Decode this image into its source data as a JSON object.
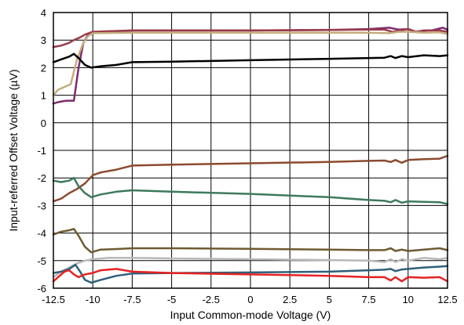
{
  "chart_data": {
    "type": "line",
    "title": "",
    "xlabel": "Input Common-mode Voltage (V)",
    "ylabel": "Input-referred Offset Voltage (µV)",
    "xlim": [
      -12.5,
      12.5
    ],
    "ylim": [
      -6,
      4
    ],
    "x_ticks": [
      -12.5,
      -10,
      -7.5,
      -5,
      -2.5,
      0,
      2.5,
      5,
      7.5,
      10,
      12.5
    ],
    "y_ticks": [
      -6,
      -5,
      -4,
      -3,
      -2,
      -1,
      0,
      1,
      2,
      3,
      4
    ],
    "x_tick_labels": [
      "-12.5",
      "-10",
      "-7.5",
      "-5",
      "-2.5",
      "0",
      "2.5",
      "5",
      "7.5",
      "10",
      "12.5"
    ],
    "y_tick_labels": [
      "-6",
      "-5",
      "-4",
      "-3",
      "-2",
      "-1",
      "0",
      "1",
      "2",
      "3",
      "4"
    ],
    "grid": true,
    "legend": "none",
    "series": [
      {
        "color": "#7b2d6e",
        "points": [
          [
            -12.5,
            0.7
          ],
          [
            -12.2,
            0.75
          ],
          [
            -11.7,
            0.8
          ],
          [
            -11.2,
            0.8
          ],
          [
            -10.9,
            2.0
          ],
          [
            -10.6,
            2.9
          ],
          [
            -10.3,
            3.2
          ],
          [
            -9.8,
            3.27
          ],
          [
            -7.5,
            3.35
          ],
          [
            0,
            3.35
          ],
          [
            5,
            3.37
          ],
          [
            7.5,
            3.4
          ],
          [
            8.8,
            3.45
          ],
          [
            9.4,
            3.38
          ],
          [
            10,
            3.4
          ],
          [
            10.5,
            3.3
          ],
          [
            11,
            3.35
          ],
          [
            11.5,
            3.35
          ],
          [
            12.2,
            3.45
          ],
          [
            12.5,
            3.38
          ]
        ]
      },
      {
        "color": "#9b3b4a",
        "points": [
          [
            -12.5,
            2.75
          ],
          [
            -12,
            2.8
          ],
          [
            -11.5,
            2.9
          ],
          [
            -11.2,
            3.0
          ],
          [
            -10.8,
            3.1
          ],
          [
            -10.5,
            3.2
          ],
          [
            -10,
            3.3
          ],
          [
            -7.5,
            3.35
          ],
          [
            0,
            3.35
          ],
          [
            5,
            3.37
          ],
          [
            7.5,
            3.38
          ],
          [
            8.5,
            3.38
          ],
          [
            9,
            3.3
          ],
          [
            9.5,
            3.35
          ],
          [
            10,
            3.4
          ],
          [
            10.5,
            3.3
          ],
          [
            11.2,
            3.35
          ],
          [
            12,
            3.35
          ],
          [
            12.5,
            3.3
          ]
        ]
      },
      {
        "color": "#c4ad7e",
        "points": [
          [
            -12.5,
            1.0
          ],
          [
            -12.2,
            1.2
          ],
          [
            -11.8,
            1.3
          ],
          [
            -11.4,
            1.4
          ],
          [
            -11,
            2.3
          ],
          [
            -10.6,
            2.9
          ],
          [
            -10.3,
            3.15
          ],
          [
            -10,
            3.25
          ],
          [
            -7.5,
            3.27
          ],
          [
            0,
            3.27
          ],
          [
            5,
            3.27
          ],
          [
            7.5,
            3.27
          ],
          [
            8.8,
            3.25
          ],
          [
            9.4,
            3.3
          ],
          [
            10,
            3.3
          ],
          [
            11,
            3.27
          ],
          [
            12,
            3.28
          ],
          [
            12.5,
            3.22
          ]
        ]
      },
      {
        "color": "#000000",
        "points": [
          [
            -12.5,
            2.2
          ],
          [
            -12,
            2.3
          ],
          [
            -11.5,
            2.4
          ],
          [
            -11.2,
            2.5
          ],
          [
            -10.9,
            2.35
          ],
          [
            -10.5,
            2.1
          ],
          [
            -10.1,
            2.0
          ],
          [
            -9.5,
            2.05
          ],
          [
            -8.5,
            2.1
          ],
          [
            -7.5,
            2.2
          ],
          [
            -5,
            2.22
          ],
          [
            0,
            2.27
          ],
          [
            5,
            2.32
          ],
          [
            7.5,
            2.35
          ],
          [
            8.5,
            2.36
          ],
          [
            8.9,
            2.42
          ],
          [
            9.2,
            2.35
          ],
          [
            9.6,
            2.42
          ],
          [
            10,
            2.38
          ],
          [
            11,
            2.45
          ],
          [
            12,
            2.42
          ],
          [
            12.5,
            2.45
          ]
        ]
      },
      {
        "color": "#8c4a2f",
        "points": [
          [
            -12.5,
            -2.85
          ],
          [
            -12,
            -2.75
          ],
          [
            -11.5,
            -2.55
          ],
          [
            -11,
            -2.4
          ],
          [
            -10.5,
            -2.2
          ],
          [
            -10,
            -1.9
          ],
          [
            -9.5,
            -1.8
          ],
          [
            -8.5,
            -1.7
          ],
          [
            -7.5,
            -1.55
          ],
          [
            -5,
            -1.52
          ],
          [
            0,
            -1.47
          ],
          [
            5,
            -1.42
          ],
          [
            7.5,
            -1.38
          ],
          [
            8.5,
            -1.37
          ],
          [
            8.9,
            -1.42
          ],
          [
            9.2,
            -1.35
          ],
          [
            9.6,
            -1.45
          ],
          [
            10,
            -1.35
          ],
          [
            11,
            -1.32
          ],
          [
            12,
            -1.3
          ],
          [
            12.5,
            -1.2
          ]
        ]
      },
      {
        "color": "#3d7a5a",
        "points": [
          [
            -12.5,
            -2.1
          ],
          [
            -12,
            -2.15
          ],
          [
            -11.5,
            -2.1
          ],
          [
            -11.2,
            -2.0
          ],
          [
            -10.9,
            -2.3
          ],
          [
            -10.5,
            -2.55
          ],
          [
            -10.1,
            -2.7
          ],
          [
            -9.5,
            -2.6
          ],
          [
            -8.5,
            -2.5
          ],
          [
            -7.5,
            -2.45
          ],
          [
            -5,
            -2.5
          ],
          [
            0,
            -2.58
          ],
          [
            5,
            -2.7
          ],
          [
            7.5,
            -2.8
          ],
          [
            8.5,
            -2.83
          ],
          [
            8.9,
            -2.88
          ],
          [
            9.2,
            -2.8
          ],
          [
            9.6,
            -2.9
          ],
          [
            10,
            -2.85
          ],
          [
            11,
            -2.87
          ],
          [
            12,
            -2.88
          ],
          [
            12.5,
            -2.95
          ]
        ]
      },
      {
        "color": "#6e5a30",
        "points": [
          [
            -12.5,
            -4.05
          ],
          [
            -12,
            -3.95
          ],
          [
            -11.5,
            -3.9
          ],
          [
            -11.2,
            -3.85
          ],
          [
            -10.9,
            -4.1
          ],
          [
            -10.5,
            -4.5
          ],
          [
            -10.1,
            -4.7
          ],
          [
            -9.5,
            -4.6
          ],
          [
            -8.5,
            -4.58
          ],
          [
            -7.5,
            -4.55
          ],
          [
            -5,
            -4.55
          ],
          [
            0,
            -4.57
          ],
          [
            5,
            -4.6
          ],
          [
            7.5,
            -4.62
          ],
          [
            8.5,
            -4.62
          ],
          [
            8.9,
            -4.55
          ],
          [
            9.2,
            -4.65
          ],
          [
            9.6,
            -4.6
          ],
          [
            10,
            -4.65
          ],
          [
            11,
            -4.6
          ],
          [
            12,
            -4.55
          ],
          [
            12.5,
            -4.62
          ]
        ]
      },
      {
        "color": "#b8b8b8",
        "points": [
          [
            -12.5,
            -5.6
          ],
          [
            -12,
            -5.4
          ],
          [
            -11.5,
            -5.25
          ],
          [
            -11,
            -5.1
          ],
          [
            -10.5,
            -5.0
          ],
          [
            -10,
            -4.95
          ],
          [
            -9,
            -4.9
          ],
          [
            -7.5,
            -4.9
          ],
          [
            -5,
            -4.92
          ],
          [
            0,
            -4.95
          ],
          [
            5,
            -4.98
          ],
          [
            7.5,
            -5.0
          ],
          [
            8.5,
            -5.05
          ],
          [
            8.9,
            -4.95
          ],
          [
            9.2,
            -5.05
          ],
          [
            9.6,
            -4.95
          ],
          [
            10,
            -5.0
          ],
          [
            11,
            -4.9
          ],
          [
            12,
            -4.95
          ],
          [
            12.5,
            -4.9
          ]
        ]
      },
      {
        "color": "#2f5f7a",
        "points": [
          [
            -12.5,
            -5.45
          ],
          [
            -12,
            -5.4
          ],
          [
            -11.5,
            -5.3
          ],
          [
            -11.1,
            -5.15
          ],
          [
            -10.8,
            -5.4
          ],
          [
            -10.5,
            -5.7
          ],
          [
            -10.1,
            -5.8
          ],
          [
            -9.5,
            -5.7
          ],
          [
            -8.5,
            -5.55
          ],
          [
            -7.5,
            -5.47
          ],
          [
            -5,
            -5.45
          ],
          [
            0,
            -5.43
          ],
          [
            5,
            -5.4
          ],
          [
            7.5,
            -5.35
          ],
          [
            8.5,
            -5.33
          ],
          [
            8.9,
            -5.3
          ],
          [
            9.2,
            -5.38
          ],
          [
            9.6,
            -5.32
          ],
          [
            10,
            -5.3
          ],
          [
            11,
            -5.25
          ],
          [
            12,
            -5.22
          ],
          [
            12.5,
            -5.2
          ]
        ]
      },
      {
        "color": "#e52222",
        "points": [
          [
            -12.5,
            -5.75
          ],
          [
            -12.2,
            -5.6
          ],
          [
            -11.8,
            -5.4
          ],
          [
            -11.5,
            -5.35
          ],
          [
            -11.2,
            -5.5
          ],
          [
            -10.9,
            -5.6
          ],
          [
            -10.5,
            -5.5
          ],
          [
            -10,
            -5.45
          ],
          [
            -9.5,
            -5.35
          ],
          [
            -8.5,
            -5.3
          ],
          [
            -7.5,
            -5.4
          ],
          [
            -5,
            -5.45
          ],
          [
            0,
            -5.5
          ],
          [
            5,
            -5.55
          ],
          [
            7.5,
            -5.6
          ],
          [
            8.5,
            -5.6
          ],
          [
            8.9,
            -5.72
          ],
          [
            9.2,
            -5.6
          ],
          [
            9.6,
            -5.75
          ],
          [
            10,
            -5.6
          ],
          [
            11,
            -5.62
          ],
          [
            12,
            -5.6
          ],
          [
            12.5,
            -5.75
          ]
        ]
      }
    ]
  }
}
